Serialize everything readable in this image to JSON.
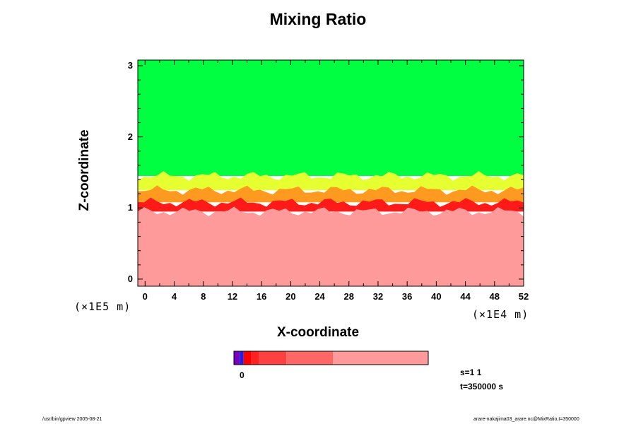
{
  "chart_data": {
    "type": "heatmap",
    "title": "Mixing Ratio",
    "xlabel": "X-coordinate",
    "ylabel": "Z-coordinate",
    "x_scale_label": "(×1E4 m)",
    "y_scale_label": "(×1E5 m)",
    "x_ticks": [
      0,
      4,
      8,
      12,
      16,
      20,
      24,
      28,
      32,
      36,
      40,
      44,
      48,
      52
    ],
    "y_ticks": [
      0,
      1,
      2,
      3
    ],
    "xlim": [
      -1,
      52
    ],
    "ylim": [
      -0.1,
      3.08
    ],
    "layers": [
      {
        "name": "upper",
        "color": "#00ff40",
        "z_from": 1.45,
        "z_to": 3.08
      },
      {
        "name": "transition-yellow",
        "color": "#e6ff30",
        "z_from": 1.25,
        "z_to": 1.45
      },
      {
        "name": "transition-orange",
        "color": "#ff9a20",
        "z_from": 1.08,
        "z_to": 1.25
      },
      {
        "name": "interface",
        "color": "#ff1a1a",
        "z_from": 0.95,
        "z_to": 1.08
      },
      {
        "name": "lower",
        "color": "#ff9a9a",
        "z_from": -0.1,
        "z_to": 0.95
      }
    ],
    "colorbar": {
      "segments": [
        {
          "color": "#7a00c0",
          "width": 0.03
        },
        {
          "color": "#2020e0",
          "width": 0.02
        },
        {
          "color": "#ff0000",
          "width": 0.04
        },
        {
          "color": "#ff2020",
          "width": 0.04
        },
        {
          "color": "#ff4040",
          "width": 0.14
        },
        {
          "color": "#ff6666",
          "width": 0.24
        },
        {
          "color": "#ff9a9a",
          "width": 0.49
        }
      ],
      "tick_label": "0"
    }
  },
  "info": {
    "s_label": "s=1 1",
    "t_label": "t=350000 s"
  },
  "footer": {
    "left": "/usr/bin/gpview 2005-08-21",
    "right": "arare-nakajima03_arare.nc@MixRatio,t=350000"
  }
}
